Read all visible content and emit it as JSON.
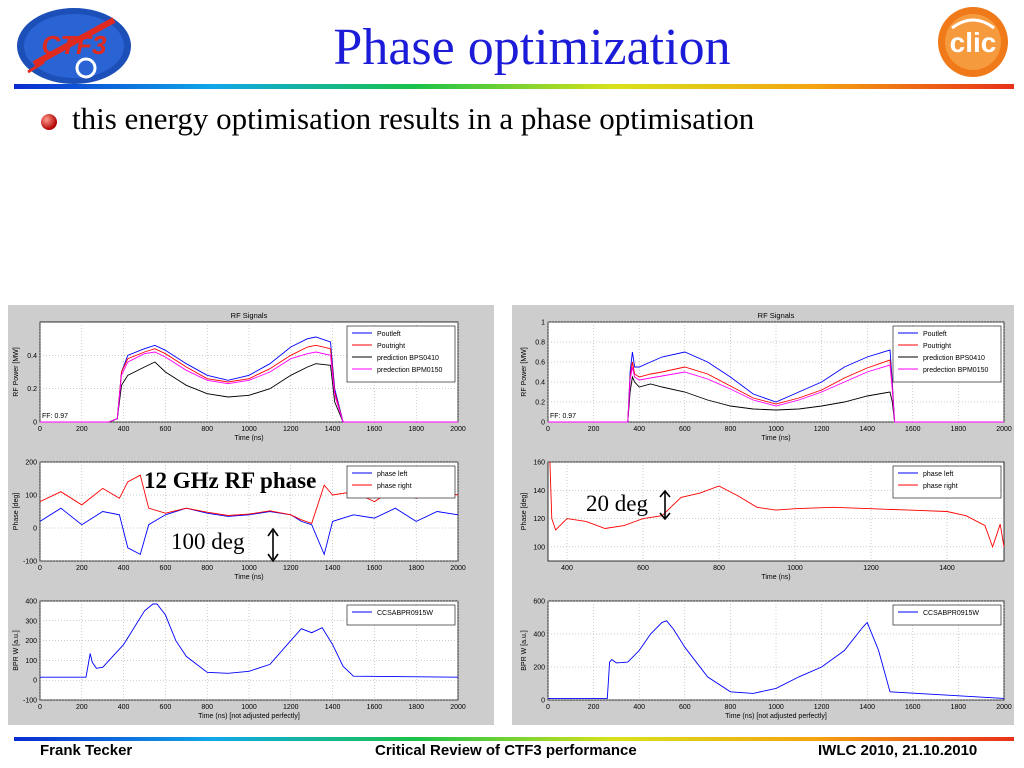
{
  "title": "Phase optimization",
  "bullet": "this energy optimisation results in a phase optimisation",
  "footer": {
    "left": "Frank Tecker",
    "center": "Critical Review of CTF3 performance",
    "right": "IWLC 2010, 21.10.2010"
  },
  "logos": {
    "left": {
      "name": "CTF3",
      "text": "CTF3",
      "colors": [
        "#1d4fb8",
        "#e02a20"
      ]
    },
    "right": {
      "name": "CLIC",
      "text": "clic",
      "color": "#f07a1a"
    }
  },
  "annotations": {
    "rf_phase": "12 GHz RF phase",
    "deg100": "100 deg",
    "deg20": "20 deg"
  },
  "chart_data": [
    {
      "id": "left-rf",
      "type": "line",
      "title": "RF Signals",
      "xlabel": "Time (ns)",
      "ylabel": "RF Power [MW]",
      "xlim": [
        0,
        2000
      ],
      "ylim": [
        0,
        0.6
      ],
      "xticks": [
        0,
        200,
        400,
        600,
        800,
        1000,
        1200,
        1400,
        1600,
        1800,
        2000
      ],
      "yticks": [
        0,
        0.2,
        0.4
      ],
      "annotation": "FF: 0.97",
      "legend": "top-right",
      "series": [
        {
          "name": "Poutleft",
          "color": "#0000ff",
          "x": [
            0,
            330,
            370,
            390,
            420,
            500,
            550,
            600,
            700,
            800,
            900,
            1000,
            1100,
            1200,
            1280,
            1320,
            1390,
            1410,
            1450,
            1500,
            2000
          ],
          "y": [
            0,
            0,
            0.02,
            0.3,
            0.4,
            0.44,
            0.46,
            0.43,
            0.35,
            0.28,
            0.25,
            0.28,
            0.35,
            0.45,
            0.5,
            0.51,
            0.48,
            0.2,
            0,
            0,
            0
          ]
        },
        {
          "name": "Poutright",
          "color": "#ff0000",
          "x": [
            0,
            330,
            370,
            390,
            420,
            500,
            550,
            600,
            700,
            800,
            900,
            1000,
            1100,
            1200,
            1280,
            1320,
            1390,
            1410,
            1450,
            1500,
            2000
          ],
          "y": [
            0,
            0,
            0.02,
            0.3,
            0.38,
            0.42,
            0.44,
            0.41,
            0.33,
            0.26,
            0.24,
            0.26,
            0.32,
            0.4,
            0.45,
            0.46,
            0.44,
            0.18,
            0,
            0,
            0
          ]
        },
        {
          "name": "prediction BPS0410",
          "color": "#000000",
          "x": [
            0,
            330,
            370,
            390,
            420,
            500,
            550,
            600,
            700,
            800,
            900,
            1000,
            1100,
            1200,
            1280,
            1320,
            1390,
            1410,
            1450,
            1500,
            2000
          ],
          "y": [
            0,
            0,
            0.02,
            0.22,
            0.28,
            0.33,
            0.36,
            0.3,
            0.22,
            0.17,
            0.15,
            0.16,
            0.2,
            0.28,
            0.33,
            0.35,
            0.34,
            0.12,
            0,
            0,
            0
          ]
        },
        {
          "name": "predection BPM0150",
          "color": "#ff00ff",
          "x": [
            0,
            330,
            370,
            390,
            420,
            500,
            550,
            600,
            700,
            800,
            900,
            1000,
            1100,
            1200,
            1280,
            1320,
            1390,
            1410,
            1450,
            1500,
            2000
          ],
          "y": [
            0,
            0,
            0.02,
            0.28,
            0.36,
            0.41,
            0.42,
            0.39,
            0.31,
            0.25,
            0.23,
            0.25,
            0.3,
            0.38,
            0.41,
            0.42,
            0.4,
            0.16,
            0,
            0,
            0
          ]
        }
      ]
    },
    {
      "id": "left-phase",
      "type": "line",
      "title": "",
      "xlabel": "Time (ns)",
      "ylabel": "Phase [deg]",
      "xlim": [
        0,
        2000
      ],
      "ylim": [
        -100,
        200
      ],
      "xticks": [
        0,
        200,
        400,
        600,
        800,
        1000,
        1200,
        1400,
        1600,
        1800,
        2000
      ],
      "yticks": [
        -100,
        0,
        100,
        200
      ],
      "legend": "top-right",
      "series": [
        {
          "name": "phase left",
          "color": "#0000ff",
          "x": [
            0,
            100,
            200,
            300,
            380,
            420,
            480,
            520,
            600,
            700,
            800,
            900,
            1000,
            1100,
            1200,
            1250,
            1300,
            1360,
            1400,
            1500,
            1600,
            1700,
            1800,
            1900,
            2000
          ],
          "y": [
            20,
            60,
            10,
            50,
            40,
            -60,
            -80,
            10,
            40,
            60,
            45,
            35,
            40,
            50,
            40,
            20,
            10,
            -80,
            20,
            40,
            30,
            60,
            20,
            50,
            40
          ]
        },
        {
          "name": "phase right",
          "color": "#ff0000",
          "x": [
            0,
            100,
            200,
            300,
            380,
            420,
            480,
            520,
            600,
            700,
            800,
            900,
            1000,
            1100,
            1200,
            1250,
            1300,
            1360,
            1400,
            1500,
            1600,
            1700,
            1800,
            1900,
            2000
          ],
          "y": [
            80,
            110,
            70,
            120,
            90,
            140,
            160,
            60,
            45,
            60,
            48,
            38,
            42,
            52,
            40,
            25,
            14,
            130,
            100,
            110,
            80,
            120,
            90,
            110,
            100
          ]
        }
      ]
    },
    {
      "id": "left-bpr",
      "type": "line",
      "title": "",
      "xlabel": "Time (ns)  [not adjusted perfectly]",
      "ylabel": "BPR W [a.u.]",
      "xlim": [
        0,
        2000
      ],
      "ylim": [
        -100,
        400
      ],
      "xticks": [
        0,
        200,
        400,
        600,
        800,
        1000,
        1200,
        1400,
        1600,
        1800,
        2000
      ],
      "yticks": [
        -100,
        0,
        100,
        200,
        300,
        400
      ],
      "legend": "top-right",
      "series": [
        {
          "name": "CCSABPR0915W",
          "color": "#0000ff",
          "x": [
            0,
            220,
            240,
            250,
            270,
            300,
            400,
            500,
            540,
            560,
            600,
            650,
            700,
            800,
            900,
            1000,
            1100,
            1200,
            1250,
            1300,
            1350,
            1400,
            1450,
            1500,
            2000
          ],
          "y": [
            15,
            15,
            135,
            90,
            60,
            65,
            180,
            350,
            385,
            385,
            330,
            200,
            120,
            40,
            35,
            45,
            80,
            200,
            260,
            240,
            265,
            180,
            70,
            20,
            15
          ]
        }
      ]
    },
    {
      "id": "right-rf",
      "type": "line",
      "title": "RF Signals",
      "xlabel": "Time (ns)",
      "ylabel": "RF Power [MW]",
      "xlim": [
        0,
        2000
      ],
      "ylim": [
        0,
        1
      ],
      "xticks": [
        0,
        200,
        400,
        600,
        800,
        1000,
        1200,
        1400,
        1600,
        1800,
        2000
      ],
      "yticks": [
        0,
        0.2,
        0.4,
        0.6,
        0.8,
        1
      ],
      "annotation": "FF: 0.97",
      "legend": "top-right",
      "series": [
        {
          "name": "Poutleft",
          "color": "#0000ff",
          "x": [
            0,
            350,
            360,
            370,
            380,
            400,
            450,
            500,
            600,
            700,
            800,
            900,
            1000,
            1100,
            1200,
            1300,
            1400,
            1500,
            1510,
            1520,
            2000
          ],
          "y": [
            0,
            0,
            0.5,
            0.7,
            0.55,
            0.55,
            0.6,
            0.65,
            0.7,
            0.6,
            0.45,
            0.28,
            0.2,
            0.3,
            0.4,
            0.55,
            0.65,
            0.72,
            0.4,
            0,
            0
          ]
        },
        {
          "name": "Poutright",
          "color": "#ff0000",
          "x": [
            0,
            350,
            360,
            370,
            380,
            400,
            450,
            500,
            600,
            700,
            800,
            900,
            1000,
            1100,
            1200,
            1300,
            1400,
            1500,
            1510,
            1520,
            2000
          ],
          "y": [
            0,
            0,
            0.45,
            0.6,
            0.48,
            0.45,
            0.48,
            0.5,
            0.55,
            0.48,
            0.36,
            0.24,
            0.18,
            0.24,
            0.32,
            0.44,
            0.54,
            0.62,
            0.35,
            0,
            0
          ]
        },
        {
          "name": "prediction BPS0410",
          "color": "#000000",
          "x": [
            0,
            350,
            360,
            370,
            380,
            400,
            450,
            500,
            600,
            700,
            800,
            900,
            1000,
            1100,
            1200,
            1300,
            1400,
            1500,
            1510,
            1520,
            2000
          ],
          "y": [
            0,
            0,
            0.3,
            0.45,
            0.4,
            0.35,
            0.38,
            0.35,
            0.3,
            0.22,
            0.16,
            0.13,
            0.12,
            0.13,
            0.16,
            0.2,
            0.26,
            0.3,
            0.2,
            0,
            0
          ]
        },
        {
          "name": "predection BPM0150",
          "color": "#ff00ff",
          "x": [
            0,
            350,
            360,
            370,
            380,
            400,
            450,
            500,
            600,
            700,
            800,
            900,
            1000,
            1100,
            1200,
            1300,
            1400,
            1500,
            1510,
            1520,
            2000
          ],
          "y": [
            0,
            0,
            0.42,
            0.55,
            0.45,
            0.42,
            0.44,
            0.46,
            0.5,
            0.43,
            0.33,
            0.22,
            0.16,
            0.22,
            0.3,
            0.4,
            0.5,
            0.57,
            0.32,
            0,
            0
          ]
        }
      ]
    },
    {
      "id": "right-phase",
      "type": "line",
      "title": "",
      "xlabel": "Time (ns)",
      "ylabel": "Phase [deg]",
      "xlim": [
        350,
        1550
      ],
      "ylim": [
        90,
        160
      ],
      "xticks": [
        400,
        600,
        800,
        1000,
        1200,
        1400
      ],
      "yticks": [
        100,
        120,
        140,
        160
      ],
      "legend": "top-right",
      "series": [
        {
          "name": "phase left",
          "color": "#0000ff",
          "x": [],
          "y": []
        },
        {
          "name": "phase right",
          "color": "#ff0000",
          "x": [
            355,
            360,
            370,
            400,
            450,
            500,
            550,
            600,
            650,
            700,
            750,
            800,
            850,
            900,
            950,
            1000,
            1100,
            1200,
            1300,
            1400,
            1450,
            1500,
            1520,
            1540,
            1550
          ],
          "y": [
            160,
            120,
            112,
            120,
            118,
            113,
            115,
            120,
            122,
            135,
            138,
            143,
            136,
            128,
            126,
            127,
            128,
            127,
            126,
            125,
            122,
            115,
            100,
            116,
            100
          ]
        }
      ]
    },
    {
      "id": "right-bpr",
      "type": "line",
      "title": "",
      "xlabel": "Time (ns)  [not adjusted perfectly]",
      "ylabel": "BPR W [a.u.]",
      "xlim": [
        0,
        2000
      ],
      "ylim": [
        0,
        600
      ],
      "xticks": [
        0,
        200,
        400,
        600,
        800,
        1000,
        1200,
        1400,
        1600,
        1800,
        2000
      ],
      "yticks": [
        0,
        200,
        400,
        600
      ],
      "legend": "top-right",
      "series": [
        {
          "name": "CCSABPR0915W",
          "color": "#0000ff",
          "x": [
            0,
            260,
            270,
            280,
            300,
            350,
            400,
            450,
            500,
            520,
            550,
            600,
            700,
            800,
            900,
            1000,
            1100,
            1200,
            1300,
            1380,
            1400,
            1450,
            1500,
            2000
          ],
          "y": [
            10,
            10,
            230,
            245,
            225,
            230,
            300,
            400,
            470,
            480,
            430,
            320,
            140,
            50,
            40,
            70,
            140,
            200,
            300,
            440,
            470,
            300,
            50,
            10
          ]
        }
      ]
    }
  ]
}
